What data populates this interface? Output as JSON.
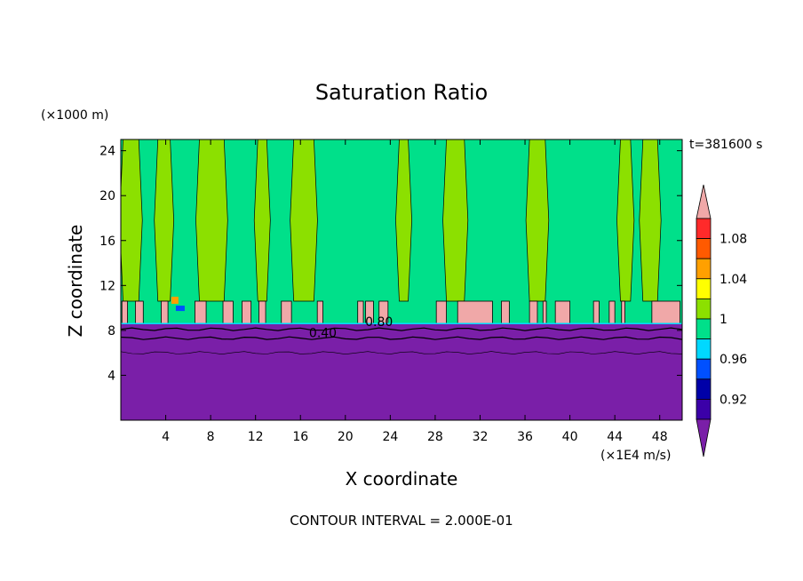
{
  "chart_data": {
    "type": "heatmap",
    "title": "Saturation Ratio",
    "xlabel": "X coordinate",
    "ylabel": "Z coordinate",
    "x_units": "(×1E4 m/s)",
    "y_units": "(×1000 m)",
    "time_label": "t=381600 s",
    "footer": "CONTOUR INTERVAL = 2.000E-01",
    "xlim": [
      0,
      50
    ],
    "ylim": [
      0,
      25
    ],
    "x_ticks": [
      4,
      8,
      12,
      16,
      20,
      24,
      28,
      32,
      36,
      40,
      44,
      48
    ],
    "y_ticks": [
      4,
      8,
      12,
      16,
      20,
      24
    ],
    "contour_labels": [
      {
        "text": "0.40",
        "x": 18.0,
        "y": 7.4
      },
      {
        "text": "0.80",
        "x": 23.0,
        "y": 8.4
      }
    ],
    "colorbar": {
      "levels": [
        {
          "color": "#7a1fa8"
        },
        {
          "color": "#3b00a8"
        },
        {
          "color": "#0000a8"
        },
        {
          "color": "#0050ff"
        },
        {
          "color": "#00d8ff"
        },
        {
          "color": "#00e08a"
        },
        {
          "color": "#8ce000"
        },
        {
          "color": "#ffff00"
        },
        {
          "color": "#ffa000"
        },
        {
          "color": "#ff5a00"
        },
        {
          "color": "#ff2a2a"
        },
        {
          "color": "#f0a8a8"
        }
      ],
      "labels": [
        "0.92",
        "0.96",
        "1",
        "1.04",
        "1.08"
      ]
    },
    "regions": {
      "dry_top": 8.6,
      "cloud_band": [
        8.6,
        10.6
      ],
      "upper_colors": [
        "#00e08a",
        "#8ce000"
      ],
      "dry_color": "#7a1fa8",
      "cloud_color": "#f0a8a8"
    },
    "grid": false
  }
}
